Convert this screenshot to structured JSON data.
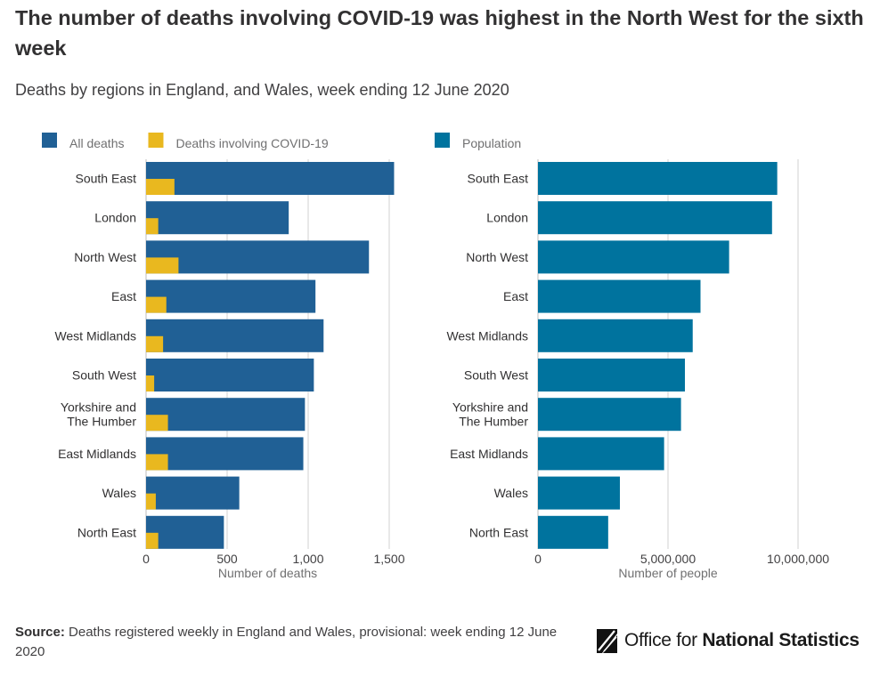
{
  "title": "The number of deaths involving COVID-19 was highest in the North West for the sixth week",
  "subtitle": "Deaths by regions in England, and Wales, week ending 12 June 2020",
  "colors": {
    "all_deaths": "#206095",
    "covid": "#e9b81f",
    "population": "#00739e",
    "grid": "#d0d0d0",
    "axis": "#bebebe"
  },
  "chart_data": [
    {
      "type": "bar",
      "orientation": "horizontal",
      "categories": [
        "South East",
        "London",
        "North West",
        "East",
        "West Midlands",
        "South West",
        "Yorkshire and The Humber",
        "East Midlands",
        "Wales",
        "North East"
      ],
      "category_lines": [
        [
          "South East"
        ],
        [
          "London"
        ],
        [
          "North West"
        ],
        [
          "East"
        ],
        [
          "West Midlands"
        ],
        [
          "South West"
        ],
        [
          "Yorkshire and",
          "The Humber"
        ],
        [
          "East Midlands"
        ],
        [
          "Wales"
        ],
        [
          "North East"
        ]
      ],
      "series": [
        {
          "name": "All deaths",
          "values": [
            1530,
            880,
            1375,
            1045,
            1095,
            1035,
            980,
            970,
            575,
            480
          ]
        },
        {
          "name": "Deaths involving COVID-19",
          "values": [
            175,
            75,
            200,
            125,
            105,
            50,
            135,
            135,
            60,
            75
          ]
        }
      ],
      "xlim": [
        0,
        1500
      ],
      "xticks": [
        0,
        500,
        1000,
        1500
      ],
      "xtick_labels": [
        "0",
        "500",
        "1,000",
        "1,500"
      ],
      "xlabel": "Number of deaths",
      "legend": [
        "All deaths",
        "Deaths involving COVID-19"
      ]
    },
    {
      "type": "bar",
      "orientation": "horizontal",
      "categories": [
        "South East",
        "London",
        "North West",
        "East",
        "West Midlands",
        "South West",
        "Yorkshire and The Humber",
        "East Midlands",
        "Wales",
        "North East"
      ],
      "category_lines": [
        [
          "South East"
        ],
        [
          "London"
        ],
        [
          "North West"
        ],
        [
          "East"
        ],
        [
          "West Midlands"
        ],
        [
          "South West"
        ],
        [
          "Yorkshire and",
          "The Humber"
        ],
        [
          "East Midlands"
        ],
        [
          "Wales"
        ],
        [
          "North East"
        ]
      ],
      "series": [
        {
          "name": "Population",
          "values": [
            9200000,
            9000000,
            7350000,
            6250000,
            5950000,
            5650000,
            5500000,
            4850000,
            3150000,
            2700000
          ]
        }
      ],
      "xlim": [
        0,
        10000000
      ],
      "xticks": [
        0,
        5000000,
        10000000
      ],
      "xtick_labels": [
        "0",
        "5,000,000",
        "10,000,000"
      ],
      "xlabel": "Number of people",
      "legend": [
        "Population"
      ]
    }
  ],
  "footer": {
    "source_label": "Source:",
    "source_text": "Deaths registered weekly in England and Wales, provisional: week ending 12 June 2020"
  },
  "logo": {
    "text_regular": "Office for ",
    "text_bold": "National Statistics"
  }
}
